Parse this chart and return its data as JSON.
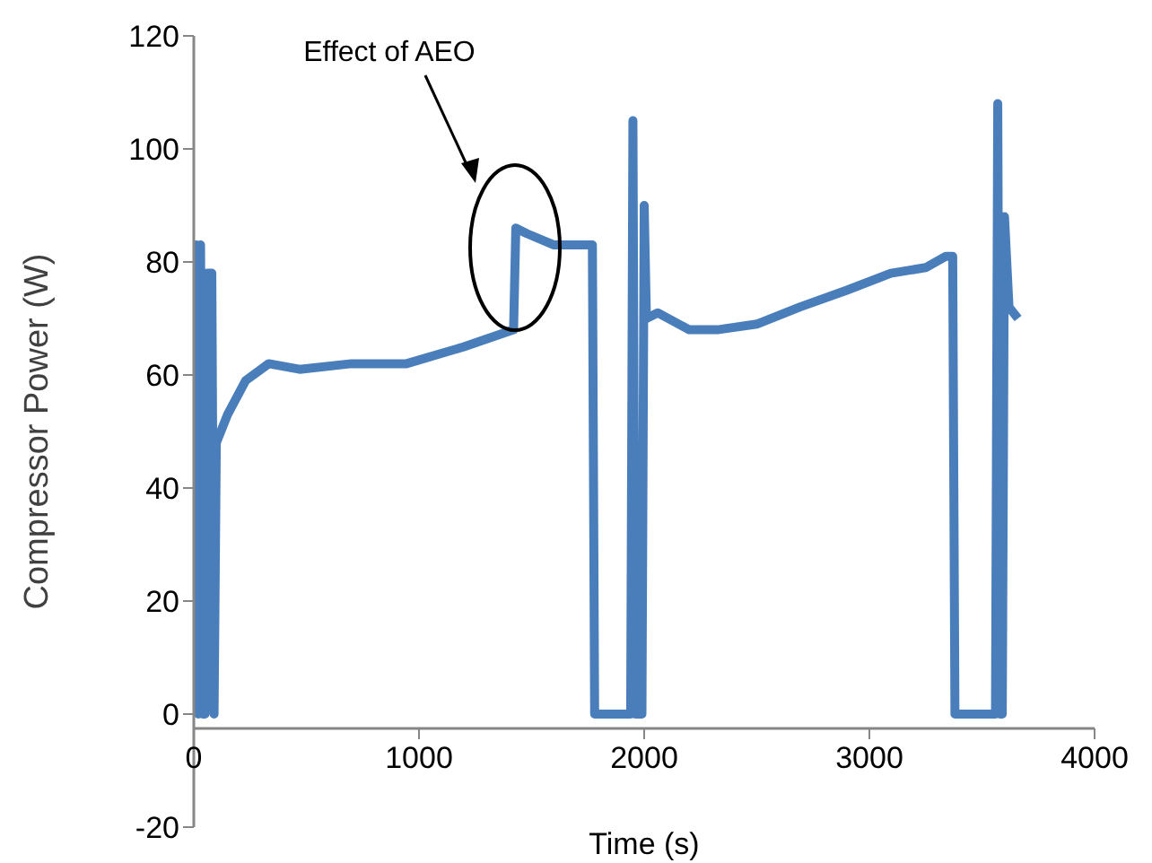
{
  "chart_data": {
    "type": "line",
    "xlabel": "Time (s)",
    "ylabel": "Compressor Power (W)",
    "xlim": [
      0,
      4000
    ],
    "xticks": [
      0,
      1000,
      2000,
      3000,
      4000
    ],
    "ylim": [
      -20,
      120
    ],
    "yticks": [
      -20,
      0,
      20,
      40,
      60,
      80,
      100,
      120
    ],
    "marker": "none",
    "line_style": "solid",
    "annotations": [
      "Effect of AEO"
    ],
    "series": [
      {
        "color": "#4a7ebb",
        "x": [
          0,
          10,
          20,
          30,
          40,
          50,
          60,
          80,
          90,
          100,
          150,
          230,
          333,
          470,
          700,
          945,
          1200,
          1420,
          1430,
          1480,
          1600,
          1740,
          1770,
          1780,
          1940,
          1950,
          1960,
          1990,
          2000,
          2010,
          2060,
          2200,
          2325,
          2500,
          2690,
          2900,
          3095,
          3250,
          3340,
          3370,
          3380,
          3560,
          3570,
          3580,
          3590,
          3600,
          3620,
          3660
        ],
        "values": [
          0,
          83,
          0,
          83,
          0,
          0,
          78,
          78,
          0,
          48,
          53,
          59,
          62,
          61,
          62,
          62,
          65,
          68,
          86,
          85,
          83,
          83,
          83,
          0,
          0,
          105,
          0,
          0,
          90,
          70,
          71,
          68,
          68,
          69,
          72,
          75,
          78,
          79,
          81,
          81,
          0,
          0,
          108,
          0,
          0,
          88,
          72,
          70
        ]
      }
    ]
  }
}
